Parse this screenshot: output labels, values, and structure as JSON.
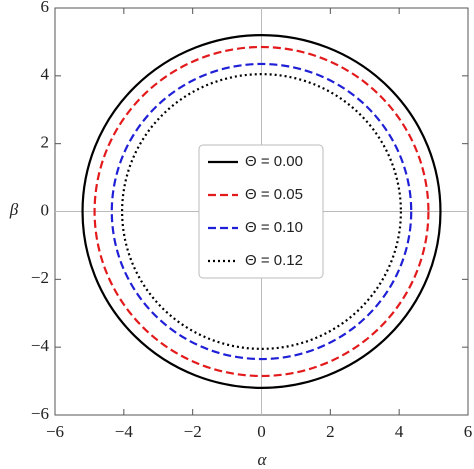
{
  "chart_data": {
    "type": "circle",
    "x_label": "α",
    "y_label": "β",
    "xlim": [
      -6,
      6
    ],
    "ylim": [
      -6,
      6
    ],
    "xticks": [
      {
        "value": -6,
        "label": "−6"
      },
      {
        "value": -4,
        "label": "−4"
      },
      {
        "value": -2,
        "label": "−2"
      },
      0,
      2,
      4,
      6
    ],
    "yticks": [
      {
        "value": -6,
        "label": "−6"
      },
      {
        "value": -4,
        "label": "−4"
      },
      {
        "value": -2,
        "label": "−2"
      },
      0,
      2,
      4,
      6
    ],
    "zero_lines": true,
    "series": [
      {
        "name": "Θ = 0.00",
        "color": "#000000",
        "dash": "solid",
        "radius": 5.2
      },
      {
        "name": "Θ = 0.05",
        "color": "#e31a1c",
        "dash": "dashed",
        "radius": 4.85
      },
      {
        "name": "Θ = 0.10",
        "color": "#1f1fd6",
        "dash": "dashed",
        "radius": 4.35
      },
      {
        "name": "Θ = 0.12",
        "color": "#000000",
        "dash": "dotted",
        "radius": 4.05
      }
    ]
  }
}
